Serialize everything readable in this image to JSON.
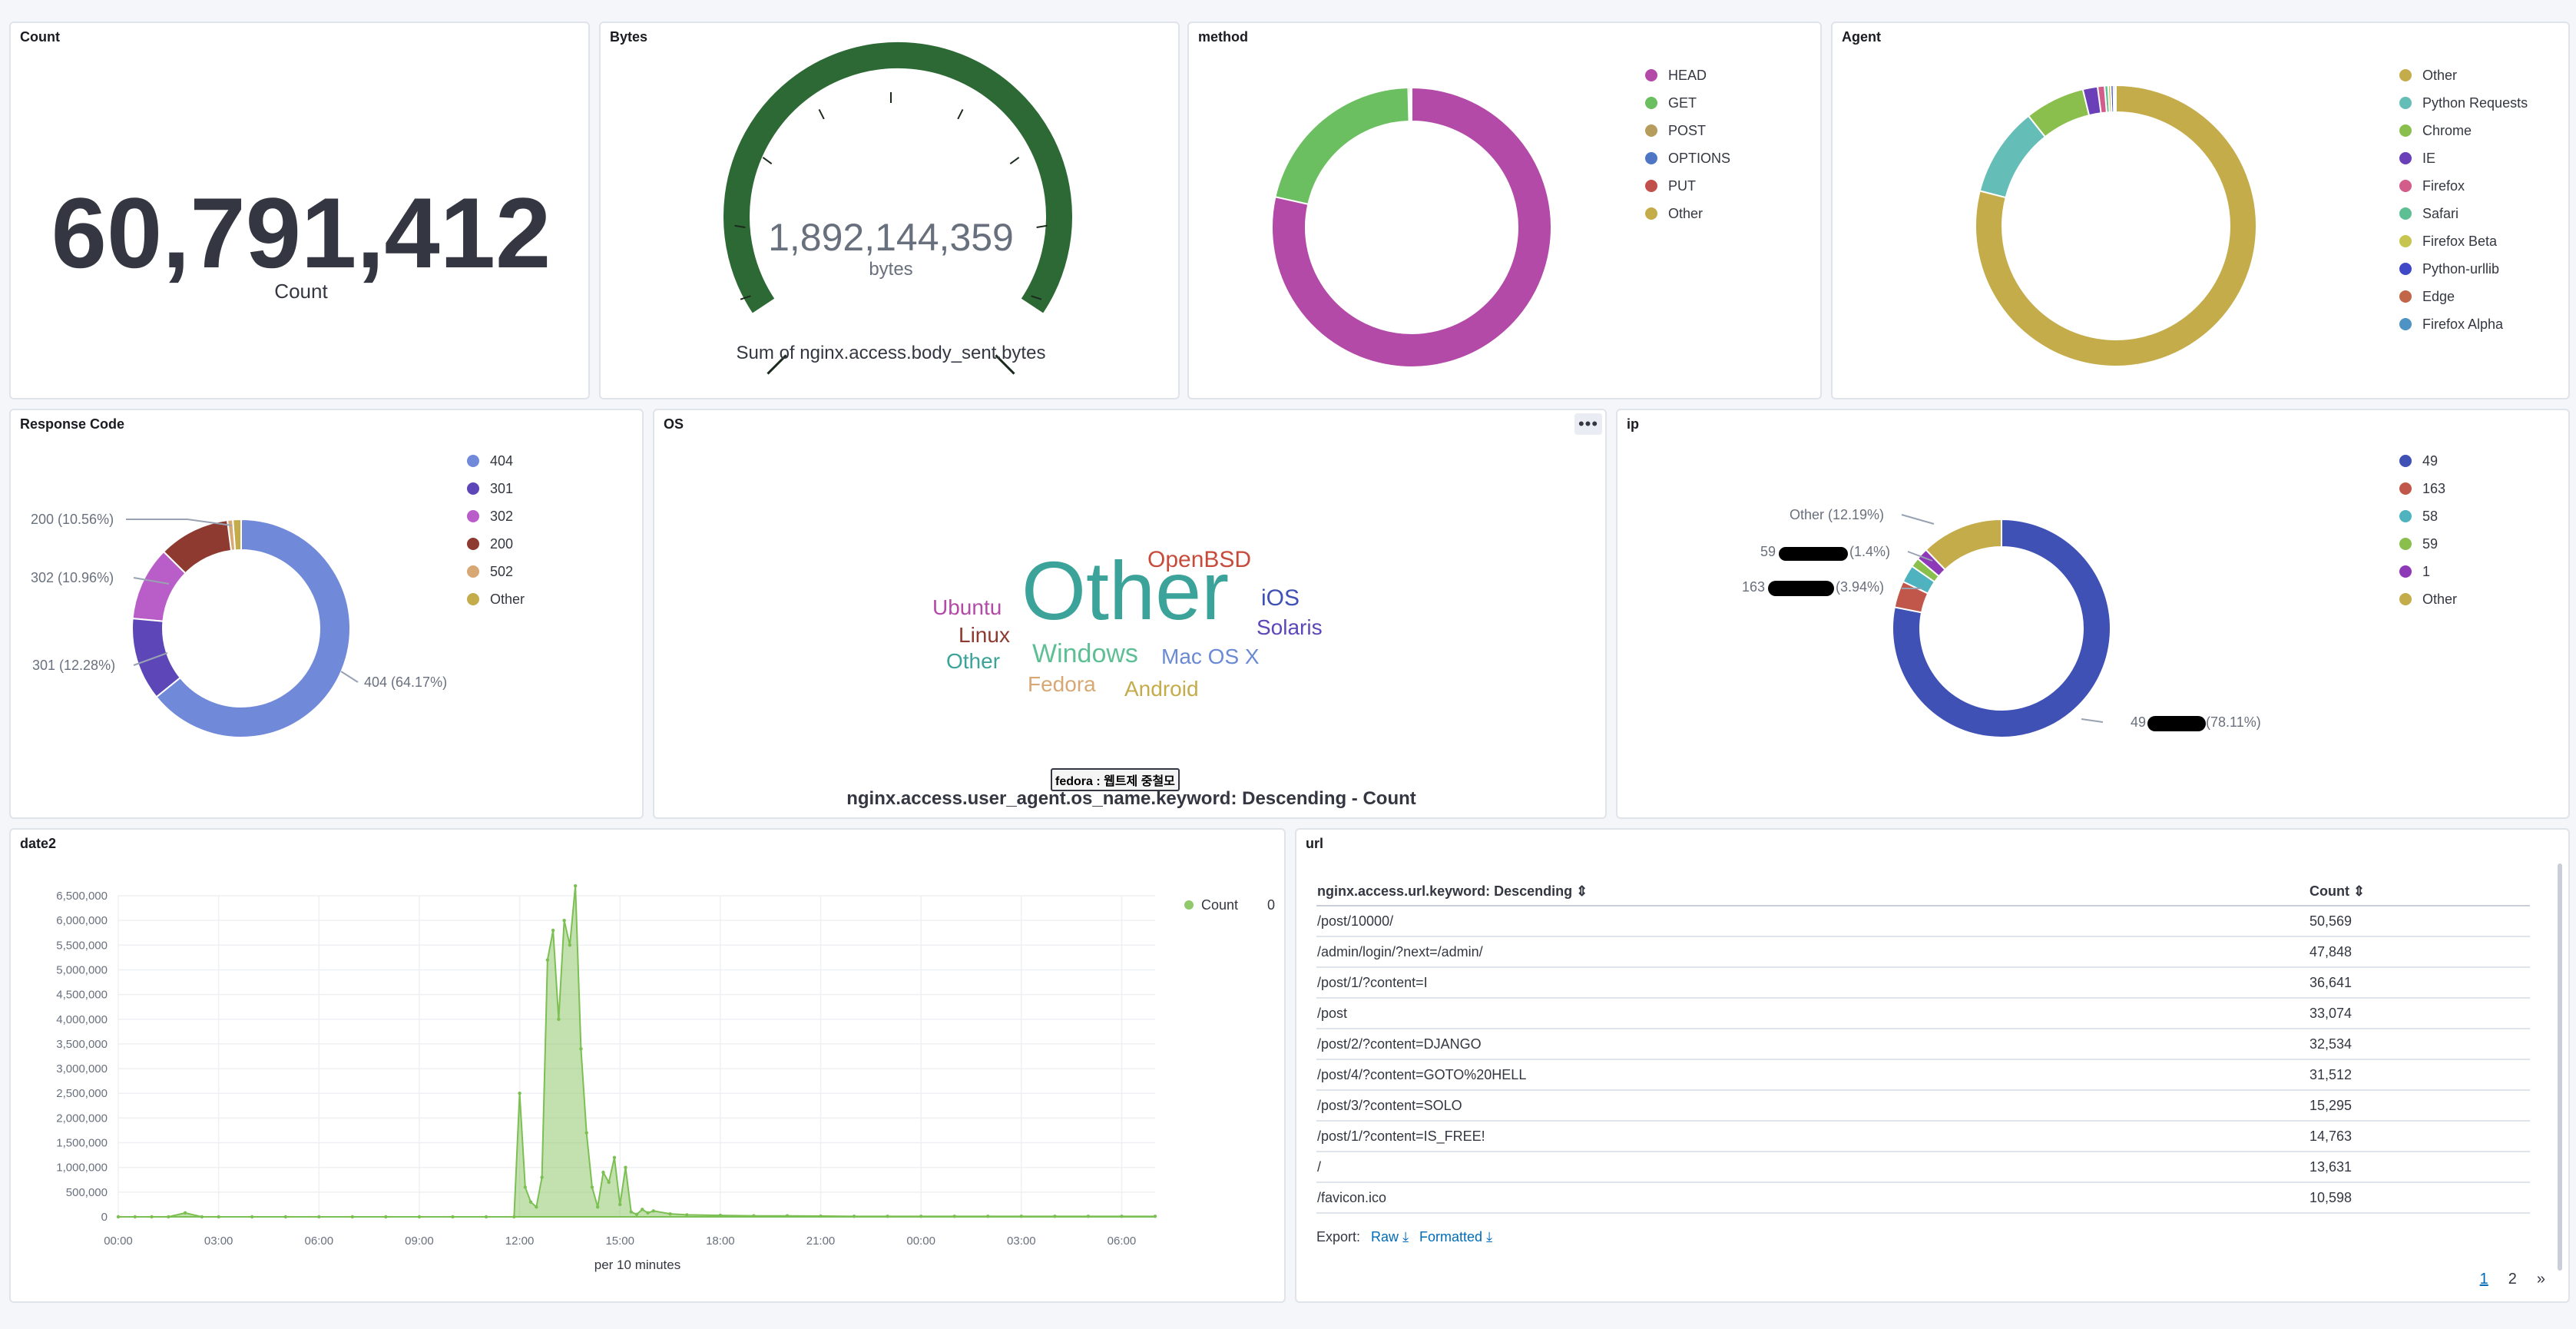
{
  "panels": {
    "count": {
      "title": "Count",
      "value": "60,791,412",
      "label": "Count"
    },
    "bytes": {
      "title": "Bytes",
      "value": "1,892,144,359",
      "unit": "bytes",
      "caption": "Sum of nginx.access.body_sent.bytes",
      "color": "#2d6934"
    },
    "method": {
      "title": "method",
      "legend": [
        {
          "label": "HEAD",
          "color": "#b44aa8"
        },
        {
          "label": "GET",
          "color": "#6bbf60"
        },
        {
          "label": "POST",
          "color": "#b69d5e"
        },
        {
          "label": "OPTIONS",
          "color": "#4e76c4"
        },
        {
          "label": "PUT",
          "color": "#c2504a"
        },
        {
          "label": "Other",
          "color": "#c4ac4b"
        }
      ]
    },
    "agent": {
      "title": "Agent",
      "legend": [
        {
          "label": "Other",
          "color": "#c4ac4b"
        },
        {
          "label": "Python Requests",
          "color": "#64bdb6"
        },
        {
          "label": "Chrome",
          "color": "#8bbf4d"
        },
        {
          "label": "IE",
          "color": "#6a3fb8"
        },
        {
          "label": "Firefox",
          "color": "#d25c8a"
        },
        {
          "label": "Safari",
          "color": "#5fbf94"
        },
        {
          "label": "Firefox Beta",
          "color": "#c5c550"
        },
        {
          "label": "Python-urllib",
          "color": "#3f48c6"
        },
        {
          "label": "Edge",
          "color": "#c2664a"
        },
        {
          "label": "Firefox Alpha",
          "color": "#4f93c4"
        }
      ]
    },
    "response": {
      "title": "Response Code",
      "legend": [
        {
          "label": "404",
          "color": "#7089d9"
        },
        {
          "label": "301",
          "color": "#5d46b8"
        },
        {
          "label": "302",
          "color": "#b95ec9"
        },
        {
          "label": "200",
          "color": "#8e3a30"
        },
        {
          "label": "502",
          "color": "#d8a874"
        },
        {
          "label": "Other",
          "color": "#c4ac4b"
        }
      ],
      "callouts": {
        "c200": "200 (10.56%)",
        "c302": "302 (10.96%)",
        "c301": "301 (12.28%)",
        "c404": "404 (64.17%)"
      }
    },
    "os": {
      "title": "OS",
      "caption": "nginx.access.user_agent.os_name.keyword: Descending - Count",
      "tooltip": "fedora : 웹트제 중철모",
      "words": {
        "openbsd": "OpenBSD",
        "ubuntu": "Ubuntu",
        "other_big": "Other",
        "ios": "iOS",
        "linux": "Linux",
        "solaris": "Solaris",
        "other_small": "Other",
        "windows": "Windows",
        "macosx": "Mac OS X",
        "fedora": "Fedora",
        "android": "Android"
      },
      "menu_icon": "ellipsis-icon"
    },
    "ip": {
      "title": "ip",
      "legend": [
        {
          "label": "49",
          "color": "#3f51b5"
        },
        {
          "label": "163",
          "color": "#c0574a"
        },
        {
          "label": "58",
          "color": "#4eb2bf"
        },
        {
          "label": "59",
          "color": "#8bbf4d"
        },
        {
          "label": "1",
          "color": "#8e3ab8"
        },
        {
          "label": "Other",
          "color": "#c4ac4b"
        }
      ],
      "callouts": {
        "other": "Other (12.19%)",
        "c59": "59",
        "c59pct": "(1.4%)",
        "c163": "163",
        "c163pct": "(3.94%)",
        "c49": "49",
        "c49pct": "(78.11%)"
      }
    },
    "date2": {
      "title": "date2",
      "legend_label": "Count",
      "legend_value": "0",
      "xlabel": "per 10 minutes",
      "color": "#8fc96b"
    },
    "url": {
      "title": "url",
      "col1": "nginx.access.url.keyword: Descending",
      "col2": "Count",
      "rows": [
        {
          "url": "/post/10000/",
          "count": "50,569"
        },
        {
          "url": "/admin/login/?next=/admin/",
          "count": "47,848"
        },
        {
          "url": "/post/1/?content=I",
          "count": "36,641"
        },
        {
          "url": "/post",
          "count": "33,074"
        },
        {
          "url": "/post/2/?content=DJANGO",
          "count": "32,534"
        },
        {
          "url": "/post/4/?content=GOTO%20HELL",
          "count": "31,512"
        },
        {
          "url": "/post/3/?content=SOLO",
          "count": "15,295"
        },
        {
          "url": "/post/1/?content=IS_FREE!",
          "count": "14,763"
        },
        {
          "url": "/",
          "count": "13,631"
        },
        {
          "url": "/favicon.ico",
          "count": "10,598"
        }
      ],
      "export_label": "Export:",
      "raw_label": "Raw",
      "formatted_label": "Formatted",
      "pages": [
        "1",
        "2"
      ],
      "next": "»"
    }
  },
  "chart_data": [
    {
      "type": "pie",
      "title": "method",
      "labels": [
        "HEAD",
        "GET",
        "POST",
        "OPTIONS",
        "PUT",
        "Other"
      ],
      "values": [
        78.5,
        21.1,
        0.2,
        0.1,
        0.05,
        0.05
      ]
    },
    {
      "type": "pie",
      "title": "Agent",
      "labels": [
        "Other",
        "Python Requests",
        "Chrome",
        "IE",
        "Firefox",
        "Safari",
        "Firefox Beta",
        "Python-urllib",
        "Edge",
        "Firefox Alpha"
      ],
      "values": [
        79.0,
        10.3,
        6.9,
        1.7,
        0.8,
        0.4,
        0.3,
        0.3,
        0.2,
        0.1
      ]
    },
    {
      "type": "pie",
      "title": "Response Code",
      "labels": [
        "404",
        "301",
        "302",
        "200",
        "502",
        "Other"
      ],
      "values": [
        64.17,
        12.28,
        10.96,
        10.56,
        0.8,
        1.23
      ]
    },
    {
      "type": "pie",
      "title": "ip",
      "labels": [
        "49",
        "163",
        "58",
        "59",
        "1",
        "Other"
      ],
      "values": [
        78.11,
        3.94,
        2.6,
        1.4,
        1.76,
        12.19
      ]
    },
    {
      "type": "area",
      "title": "date2",
      "series": [
        {
          "name": "Count"
        }
      ],
      "x": [
        "00:00",
        "00:30",
        "01:00",
        "01:30",
        "02:00",
        "02:30",
        "03:00",
        "04:00",
        "05:00",
        "06:00",
        "07:00",
        "08:00",
        "09:00",
        "10:00",
        "11:00",
        "11:50",
        "12:00",
        "12:10",
        "12:20",
        "12:30",
        "12:40",
        "12:50",
        "13:00",
        "13:10",
        "13:20",
        "13:30",
        "13:40",
        "13:50",
        "14:00",
        "14:10",
        "14:20",
        "14:30",
        "14:40",
        "14:50",
        "15:00",
        "15:10",
        "15:20",
        "15:30",
        "15:40",
        "15:50",
        "16:00",
        "16:30",
        "17:00",
        "18:00",
        "19:00",
        "20:00",
        "21:00",
        "22:00",
        "23:00",
        "00:00",
        "01:00",
        "02:00",
        "03:00",
        "04:00",
        "05:00",
        "06:00",
        "07:00"
      ],
      "values": [
        0,
        0,
        0,
        0,
        80000,
        0,
        0,
        0,
        0,
        0,
        0,
        0,
        0,
        0,
        0,
        0,
        2500000,
        600000,
        300000,
        200000,
        800000,
        5200000,
        5800000,
        4000000,
        6000000,
        5500000,
        6700000,
        3400000,
        1700000,
        600000,
        200000,
        900000,
        700000,
        1200000,
        250000,
        1000000,
        100000,
        50000,
        150000,
        80000,
        120000,
        60000,
        40000,
        30000,
        20000,
        20000,
        15000,
        10000,
        10000,
        10000,
        10000,
        10000,
        10000,
        10000,
        10000,
        10000,
        10000
      ],
      "ylim": [
        0,
        6500000
      ],
      "yticks": [
        "0",
        "500,000",
        "1,000,000",
        "1,500,000",
        "2,000,000",
        "2,500,000",
        "3,000,000",
        "3,500,000",
        "4,000,000",
        "4,500,000",
        "5,000,000",
        "5,500,000",
        "6,000,000",
        "6,500,000"
      ],
      "xticks": [
        "00:00",
        "03:00",
        "06:00",
        "09:00",
        "12:00",
        "15:00",
        "18:00",
        "21:00",
        "00:00",
        "03:00",
        "06:00"
      ],
      "xlabel": "per 10 minutes",
      "grid": true,
      "legend": "top-right"
    }
  ]
}
